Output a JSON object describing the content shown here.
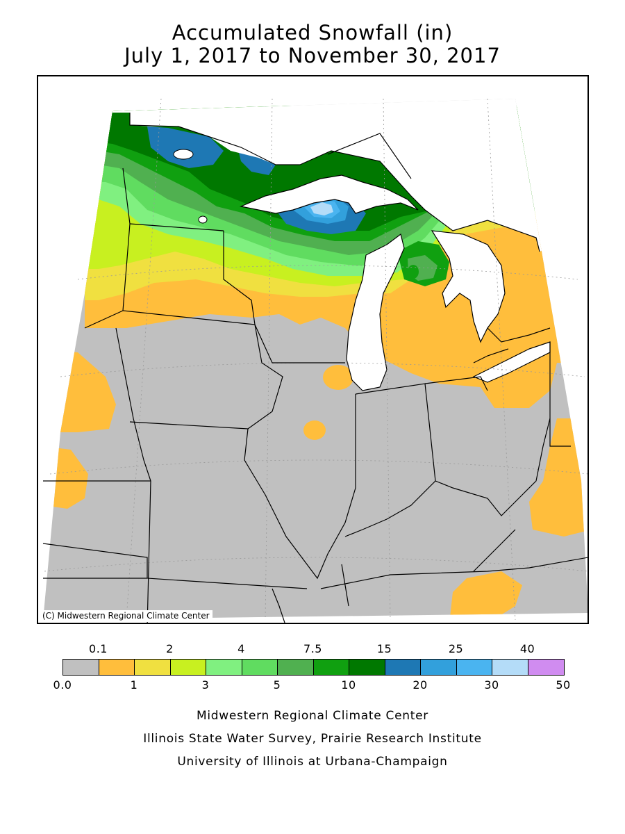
{
  "title": {
    "line1": "Accumulated Snowfall (in)",
    "line2": "July 1, 2017 to November 30, 2017"
  },
  "map": {
    "credit": "(C) Midwestern Regional Climate Center",
    "colors": {
      "land_trace": "#c0c0c0",
      "water": "#ffffff",
      "orange": "#ffbe3c",
      "yellow": "#f0e040",
      "yellow_green": "#c8f020",
      "light_green": "#80f080",
      "green1": "#60dc60",
      "green2": "#50b050",
      "green3": "#10a010",
      "dark_green": "#007800",
      "blue1": "#1e78b4",
      "blue2": "#32a0dc",
      "blue3": "#4ab4f0",
      "light_blue": "#b4dcf8"
    }
  },
  "legend": {
    "top_labels": [
      "0.1",
      "2",
      "4",
      "7.5",
      "15",
      "25",
      "40"
    ],
    "bottom_labels": [
      "0.0",
      "1",
      "3",
      "5",
      "10",
      "20",
      "30",
      "50"
    ],
    "colors": [
      "#c0c0c0",
      "#ffbe3c",
      "#f0e040",
      "#c8f020",
      "#80f080",
      "#60dc60",
      "#50b050",
      "#10a010",
      "#007800",
      "#1e78b4",
      "#32a0dc",
      "#4ab4f0",
      "#b4dcf8",
      "#d08cf0"
    ]
  },
  "footer": {
    "line1": "Midwestern Regional Climate Center",
    "line2": "Illinois State Water Survey, Prairie Research Institute",
    "line3": "University of Illinois at Urbana-Champaign"
  }
}
